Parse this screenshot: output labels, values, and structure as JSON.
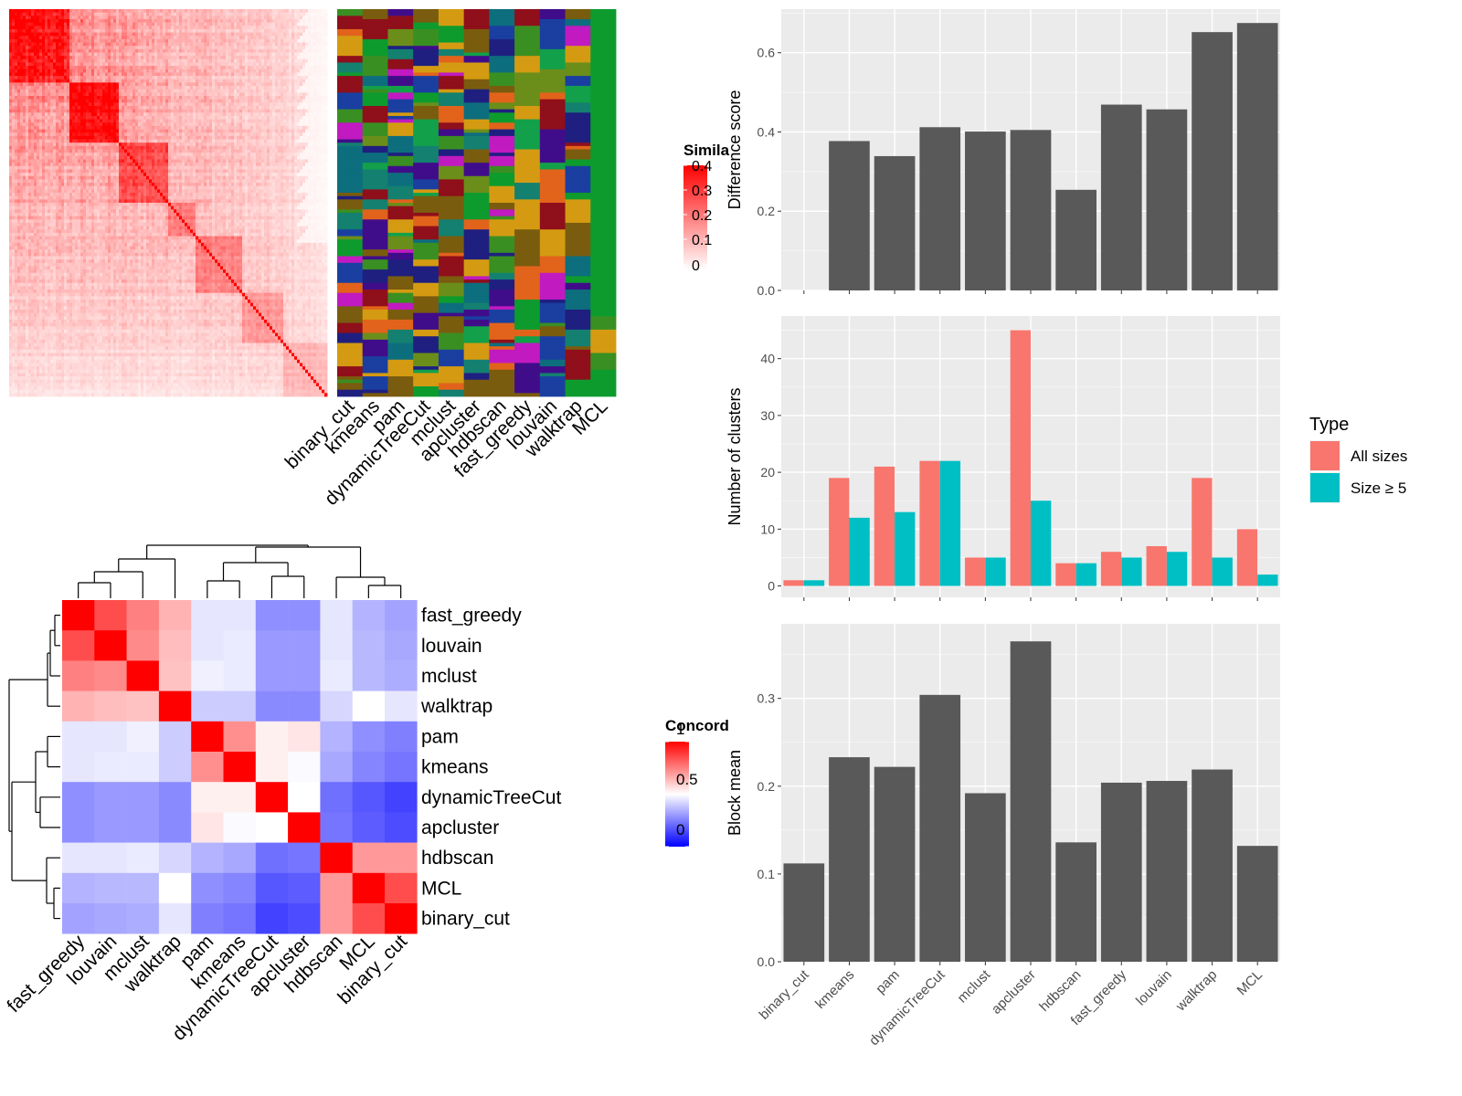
{
  "chart_data": [
    {
      "type": "heatmap",
      "panel": "similarity-heatmap",
      "legend": {
        "title": "Simila",
        "ticks": [
          "0.4",
          "0.3",
          "0.2",
          "0.1",
          "0"
        ],
        "range": [
          0,
          0.4
        ]
      },
      "methods": [
        "binary_cut",
        "kmeans",
        "pam",
        "dynamicTreeCut",
        "mclust",
        "apcluster",
        "hdbscan",
        "fast_greedy",
        "louvain",
        "walktrap",
        "MCL"
      ]
    },
    {
      "type": "heatmap",
      "panel": "concordance-heatmap",
      "legend": {
        "title": "Concord",
        "ticks": [
          "1",
          "0.5",
          "0"
        ],
        "range": [
          0,
          1
        ]
      },
      "rows": [
        "fast_greedy",
        "louvain",
        "mclust",
        "walktrap",
        "pam",
        "kmeans",
        "dynamicTreeCut",
        "apcluster",
        "hdbscan",
        "MCL",
        "binary_cut"
      ],
      "cols": [
        "fast_greedy",
        "louvain",
        "mclust",
        "walktrap",
        "pam",
        "kmeans",
        "dynamicTreeCut",
        "apcluster",
        "hdbscan",
        "MCL",
        "binary_cut"
      ],
      "values": [
        [
          1.0,
          0.85,
          0.75,
          0.65,
          0.45,
          0.45,
          0.28,
          0.28,
          0.45,
          0.35,
          0.32
        ],
        [
          0.85,
          1.0,
          0.73,
          0.63,
          0.45,
          0.46,
          0.3,
          0.3,
          0.45,
          0.36,
          0.33
        ],
        [
          0.75,
          0.73,
          1.0,
          0.62,
          0.47,
          0.46,
          0.3,
          0.3,
          0.46,
          0.36,
          0.34
        ],
        [
          0.65,
          0.63,
          0.62,
          1.0,
          0.4,
          0.4,
          0.27,
          0.27,
          0.42,
          0.5,
          0.45
        ],
        [
          0.45,
          0.45,
          0.47,
          0.4,
          1.0,
          0.72,
          0.53,
          0.55,
          0.35,
          0.28,
          0.25
        ],
        [
          0.45,
          0.46,
          0.46,
          0.4,
          0.72,
          1.0,
          0.53,
          0.49,
          0.33,
          0.26,
          0.23
        ],
        [
          0.28,
          0.3,
          0.3,
          0.27,
          0.53,
          0.53,
          1.0,
          0.5,
          0.22,
          0.17,
          0.13
        ],
        [
          0.28,
          0.3,
          0.3,
          0.27,
          0.55,
          0.49,
          0.5,
          1.0,
          0.23,
          0.18,
          0.15
        ],
        [
          0.45,
          0.45,
          0.46,
          0.42,
          0.35,
          0.33,
          0.22,
          0.23,
          1.0,
          0.7,
          0.7
        ],
        [
          0.35,
          0.36,
          0.36,
          0.5,
          0.28,
          0.26,
          0.17,
          0.18,
          0.7,
          1.0,
          0.85
        ],
        [
          0.32,
          0.33,
          0.34,
          0.45,
          0.25,
          0.23,
          0.13,
          0.15,
          0.7,
          0.85,
          1.0
        ]
      ]
    },
    {
      "type": "bar",
      "panel": "difference-score",
      "categories": [
        "binary_cut",
        "kmeans",
        "pam",
        "dynamicTreeCut",
        "mclust",
        "apcluster",
        "hdbscan",
        "fast_greedy",
        "louvain",
        "walktrap",
        "MCL"
      ],
      "values": [
        0,
        0.377,
        0.339,
        0.412,
        0.401,
        0.405,
        0.254,
        0.469,
        0.457,
        0.652,
        0.675
      ],
      "ylabel": "Difference score",
      "ylim": [
        0,
        0.71
      ],
      "yticks": [
        "0.0",
        "0.2",
        "0.4",
        "0.6"
      ],
      "color": "#595959"
    },
    {
      "type": "bar",
      "panel": "number-of-clusters",
      "categories": [
        "binary_cut",
        "kmeans",
        "pam",
        "dynamicTreeCut",
        "mclust",
        "apcluster",
        "hdbscan",
        "fast_greedy",
        "louvain",
        "walktrap",
        "MCL"
      ],
      "series": [
        {
          "name": "All sizes",
          "color": "#f8766d",
          "values": [
            1,
            19,
            21,
            22,
            5,
            45,
            4,
            6,
            7,
            19,
            10
          ]
        },
        {
          "name": "Size ≥ 5",
          "color": "#00bfc4",
          "values": [
            1,
            12,
            13,
            22,
            5,
            15,
            4,
            5,
            6,
            5,
            2
          ]
        }
      ],
      "ylabel": "Number of clusters",
      "ylim": [
        -2,
        47.5
      ],
      "yticks": [
        "0",
        "10",
        "20",
        "30",
        "40"
      ],
      "legend": {
        "title": "Type",
        "position": "right"
      }
    },
    {
      "type": "bar",
      "panel": "block-mean",
      "categories": [
        "binary_cut",
        "kmeans",
        "pam",
        "dynamicTreeCut",
        "mclust",
        "apcluster",
        "hdbscan",
        "fast_greedy",
        "louvain",
        "walktrap",
        "MCL"
      ],
      "values": [
        0.112,
        0.233,
        0.222,
        0.304,
        0.192,
        0.365,
        0.136,
        0.204,
        0.206,
        0.219,
        0.132
      ],
      "ylabel": "Block mean",
      "ylim": [
        0,
        0.385
      ],
      "yticks": [
        "0.0",
        "0.1",
        "0.2",
        "0.3"
      ],
      "color": "#595959"
    }
  ]
}
